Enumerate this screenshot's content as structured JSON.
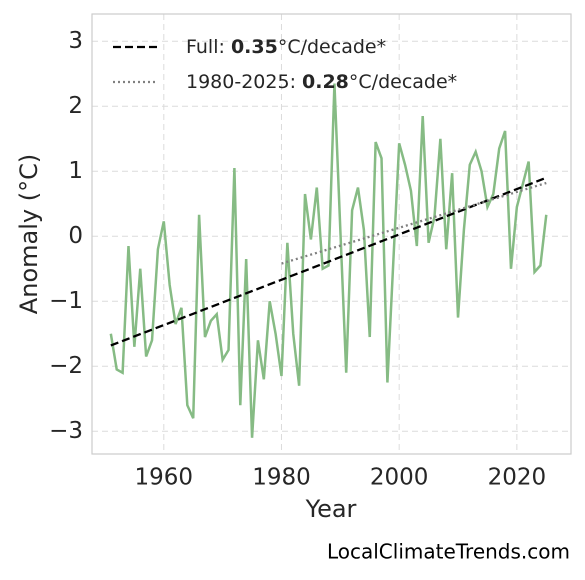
{
  "chart_data": {
    "type": "line",
    "xlabel": "Year",
    "ylabel": "Anomaly (°C)",
    "watermark": "LocalClimateTrends.com",
    "xlim": [
      1947.8,
      2029.2
    ],
    "ylim": [
      -3.35,
      3.42
    ],
    "xticks": [
      1960,
      1980,
      2000,
      2020
    ],
    "yticks": [
      {
        "value": -3,
        "label": "−3"
      },
      {
        "value": -2,
        "label": "−2"
      },
      {
        "value": -1,
        "label": "−1"
      },
      0,
      1,
      2,
      3
    ],
    "grid": true,
    "legend": "upper left",
    "series": [
      {
        "color": "#86bb84",
        "x": [
          1951,
          1952,
          1953,
          1954,
          1955,
          1956,
          1957,
          1958,
          1959,
          1960,
          1961,
          1962,
          1963,
          1964,
          1965,
          1966,
          1967,
          1968,
          1969,
          1970,
          1971,
          1972,
          1973,
          1974,
          1975,
          1976,
          1977,
          1978,
          1979,
          1980,
          1981,
          1982,
          1983,
          1984,
          1985,
          1986,
          1987,
          1988,
          1989,
          1990,
          1991,
          1992,
          1993,
          1994,
          1995,
          1996,
          1997,
          1998,
          1999,
          2000,
          2001,
          2002,
          2003,
          2004,
          2005,
          2006,
          2007,
          2008,
          2009,
          2010,
          2011,
          2012,
          2013,
          2014,
          2015,
          2016,
          2017,
          2018,
          2019,
          2020,
          2021,
          2022,
          2023,
          2024,
          2025
        ],
        "values": [
          -1.5,
          -2.05,
          -2.1,
          -0.15,
          -1.7,
          -0.5,
          -1.85,
          -1.6,
          -0.2,
          0.23,
          -0.75,
          -1.35,
          -1.1,
          -2.6,
          -2.8,
          0.33,
          -1.55,
          -1.3,
          -1.2,
          -1.9,
          -1.75,
          1.05,
          -2.6,
          -0.35,
          -3.1,
          -1.6,
          -2.2,
          -1.0,
          -1.5,
          -2.15,
          -0.1,
          -1.5,
          -2.3,
          0.65,
          -0.05,
          0.75,
          -0.5,
          -0.45,
          2.35,
          0.1,
          -2.1,
          0.4,
          0.75,
          0.1,
          -1.55,
          1.45,
          1.2,
          -2.25,
          -0.4,
          1.43,
          1.1,
          0.7,
          -0.15,
          1.85,
          -0.1,
          0.3,
          1.5,
          -0.2,
          0.97,
          -1.25,
          0.1,
          1.1,
          1.3,
          1.0,
          0.45,
          0.65,
          1.35,
          1.62,
          -0.5,
          0.45,
          0.8,
          1.15,
          -0.55,
          -0.45,
          0.33
        ]
      },
      {
        "name": "Full:",
        "rate": 0.35,
        "unit": "°C/decade*",
        "color": "#000000",
        "dash": "dashed",
        "x": [
          1951,
          2025
        ],
        "values": [
          -1.68,
          0.9
        ]
      },
      {
        "name": "1980-2025:",
        "rate": 0.28,
        "unit": "°C/decade*",
        "color": "#808080",
        "dash": "dotted",
        "x": [
          1980,
          2025
        ],
        "values": [
          -0.42,
          0.82
        ]
      }
    ]
  }
}
